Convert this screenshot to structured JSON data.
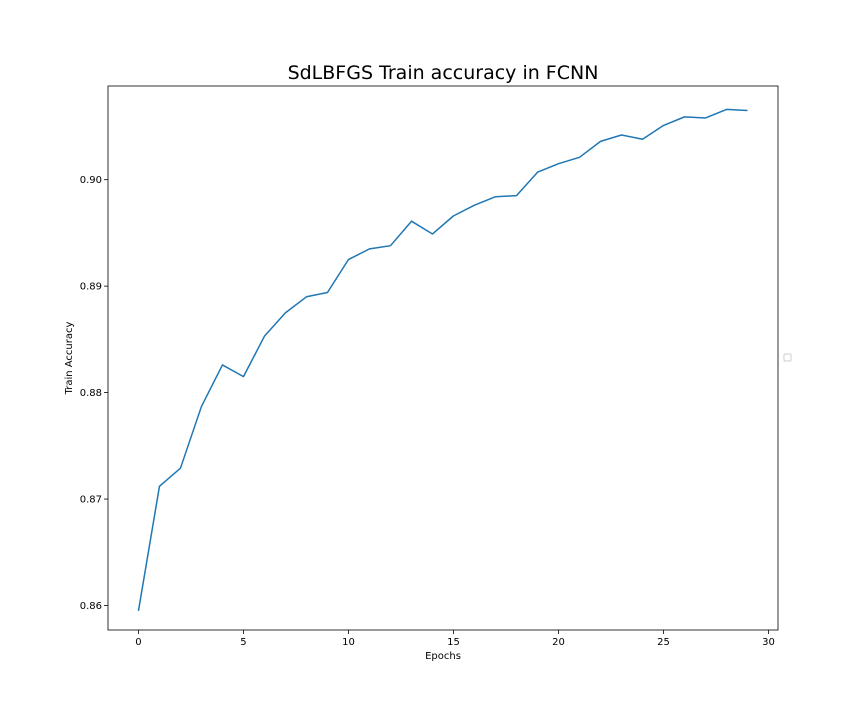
{
  "chart_data": {
    "type": "line",
    "title": "SdLBFGS Train accuracy in FCNN",
    "xlabel": "Epochs",
    "ylabel": "Train Accuracy",
    "xlim": [
      -1.45,
      30.45
    ],
    "ylim": [
      0.8577,
      0.9088
    ],
    "xticks": [
      0,
      5,
      10,
      15,
      20,
      25,
      30
    ],
    "xtick_labels": [
      "0",
      "5",
      "10",
      "15",
      "20",
      "25",
      "30"
    ],
    "yticks": [
      0.86,
      0.87,
      0.88,
      0.89,
      0.9
    ],
    "ytick_labels": [
      "0.86",
      "0.87",
      "0.88",
      "0.89",
      "0.90"
    ],
    "grid": false,
    "legend": "center right (empty)",
    "series": [
      {
        "color": "#1f77b4",
        "x": [
          0,
          1,
          2,
          3,
          4,
          5,
          6,
          7,
          8,
          9,
          10,
          11,
          12,
          13,
          14,
          15,
          16,
          17,
          18,
          19,
          20,
          21,
          22,
          23,
          24,
          25,
          26,
          27,
          28,
          29
        ],
        "y": [
          0.8595,
          0.8712,
          0.8729,
          0.8787,
          0.8826,
          0.8815,
          0.8853,
          0.8875,
          0.889,
          0.8894,
          0.8925,
          0.8935,
          0.8938,
          0.8961,
          0.8949,
          0.8966,
          0.8976,
          0.8984,
          0.8985,
          0.9007,
          0.9015,
          0.9021,
          0.9036,
          0.9042,
          0.9038,
          0.9051,
          0.9059,
          0.9058,
          0.9066,
          0.9065
        ]
      }
    ]
  }
}
